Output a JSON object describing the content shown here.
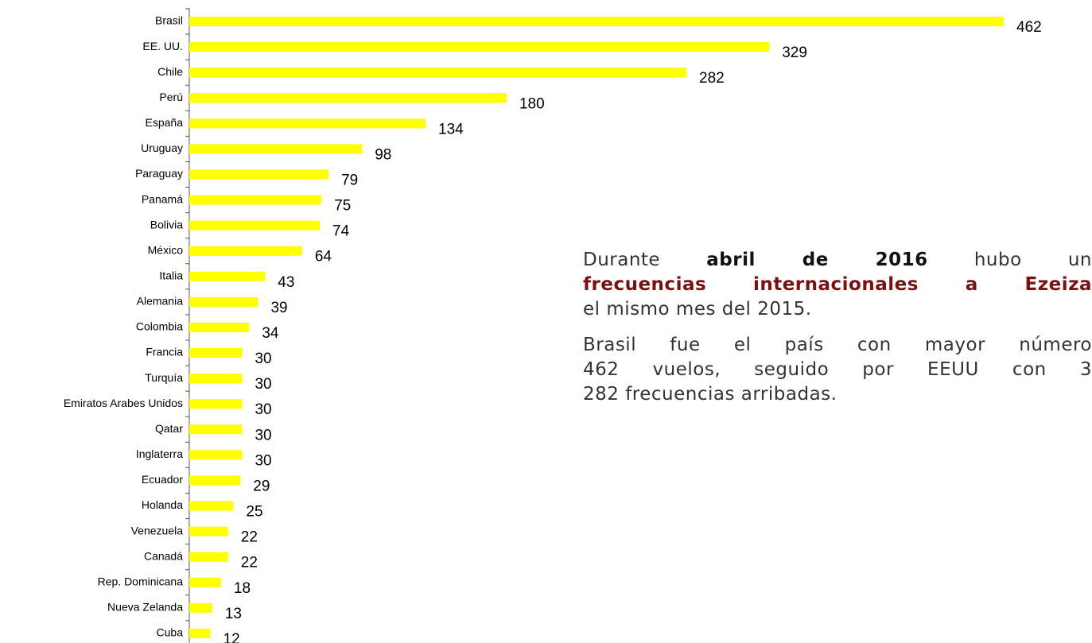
{
  "chart_data": {
    "type": "bar",
    "orientation": "horizontal",
    "color": "#ffff00",
    "categories": [
      "Brasil",
      "EE. UU.",
      "Chile",
      "Perú",
      "España",
      "Uruguay",
      "Paraguay",
      "Panamá",
      "Bolivia",
      "México",
      "Italia",
      "Alemania",
      "Colombia",
      "Francia",
      "Turquía",
      "Emiratos Arabes Unidos",
      "Qatar",
      "Inglaterra",
      "Ecuador",
      "Holanda",
      "Venezuela",
      "Canadá",
      "Rep. Dominicana",
      "Nueva Zelanda",
      "Cuba"
    ],
    "values": [
      462,
      329,
      282,
      180,
      134,
      98,
      79,
      75,
      74,
      64,
      43,
      39,
      34,
      30,
      30,
      30,
      30,
      30,
      29,
      25,
      22,
      22,
      18,
      13,
      12
    ]
  },
  "text_block": {
    "paragraphs": [
      [
        [
          {
            "text": "Durante "
          },
          {
            "text": "abril de 2016",
            "style": "bold"
          },
          {
            "text": " hubo un"
          }
        ],
        [
          {
            "text": "frecuencias internacionales a Ezeiza",
            "style": "hl"
          }
        ],
        [
          {
            "text": "el mismo mes del 2015."
          }
        ]
      ],
      [
        [
          {
            "text": "Brasil fue el país con mayor número"
          }
        ],
        [
          {
            "text": "462 vuelos, seguido por EEUU con 3"
          }
        ],
        [
          {
            "text": "282 frecuencias arribadas."
          }
        ]
      ]
    ]
  }
}
